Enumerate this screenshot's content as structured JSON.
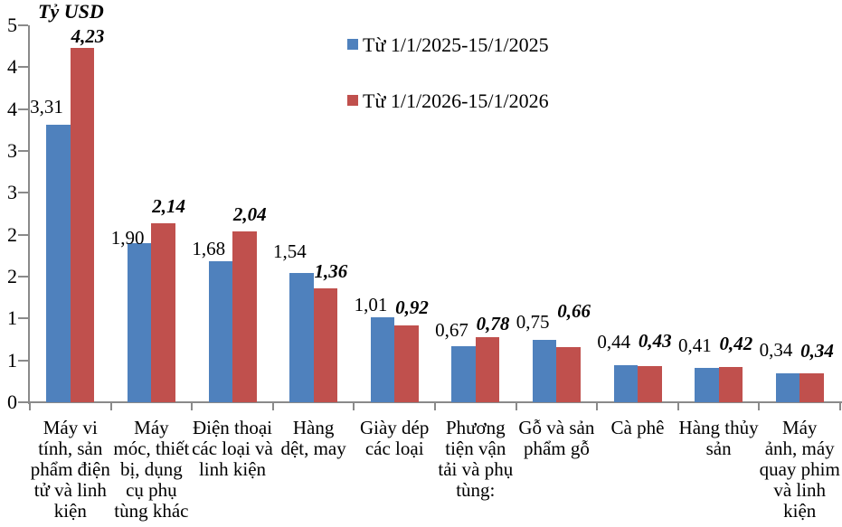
{
  "chart_data": {
    "type": "bar",
    "title": "Tỷ USD",
    "ylabel": "Tỷ USD",
    "xlabel": "",
    "grid": false,
    "legend_position": "top-center-inside",
    "yaxis": {
      "min": 0,
      "max": 4.5,
      "step": 0.5,
      "tick_labels_bottom_to_top": [
        "0",
        "1",
        "1",
        "2",
        "2",
        "3",
        "3",
        "4",
        "4",
        "5"
      ]
    },
    "categories": [
      {
        "label": "Máy vi tính, sản phẩm điện tử và linh kiện",
        "lines": [
          "Máy vi",
          "tính, sản",
          "phẩm điện",
          "tử và linh",
          "kiện"
        ]
      },
      {
        "label": "Máy móc, thiết bị, dụng cụ phụ tùng khác",
        "lines": [
          "Máy",
          "móc, thiết",
          "bị, dụng",
          "cụ phụ",
          "tùng khác"
        ]
      },
      {
        "label": "Điện thoại các loại và linh kiện",
        "lines": [
          "Điện thoại",
          "các loại và",
          "linh kiện"
        ]
      },
      {
        "label": "Hàng dệt, may",
        "lines": [
          "Hàng",
          "dệt, may"
        ]
      },
      {
        "label": "Giày dép các loại",
        "lines": [
          "Giày dép",
          "các loại"
        ]
      },
      {
        "label": "Phương tiện vận tải và phụ tùng:",
        "lines": [
          "Phương",
          "tiện vận",
          "tải và phụ",
          "tùng:"
        ]
      },
      {
        "label": "Gỗ và sản phẩm gỗ",
        "lines": [
          "Gỗ và sản",
          "phẩm gỗ"
        ]
      },
      {
        "label": "Cà phê",
        "lines": [
          "Cà phê"
        ]
      },
      {
        "label": "Hàng thủy sản",
        "lines": [
          "Hàng thủy",
          "sản"
        ]
      },
      {
        "label": "Máy ảnh, máy quay phim và linh kiện",
        "lines": [
          "Máy",
          "ảnh, máy",
          "quay phim",
          "và linh",
          "kiện"
        ]
      }
    ],
    "series": [
      {
        "name": "Từ 1/1/2025-15/1/2025",
        "color": "#4F81BD",
        "values": [
          3.31,
          1.9,
          1.68,
          1.54,
          1.01,
          0.67,
          0.75,
          0.44,
          0.41,
          0.34
        ],
        "value_labels": [
          "3,31",
          "1,90",
          "1,68",
          "1,54",
          "1,01",
          "0,67",
          "0,75",
          "0,44",
          "0,41",
          "0,34"
        ]
      },
      {
        "name": "Từ 1/1/2026-15/1/2026",
        "color": "#C0504D",
        "values": [
          4.23,
          2.14,
          2.04,
          1.36,
          0.92,
          0.78,
          0.66,
          0.43,
          0.42,
          0.34
        ],
        "value_labels": [
          "4,23",
          "2,14",
          "2,04",
          "1,36",
          "0,92",
          "0,78",
          "0,66",
          "0,43",
          "0,42",
          "0,34"
        ]
      }
    ]
  },
  "colors": {
    "axis": "#8A8A8A",
    "text": "#000000",
    "background": "#FFFFFF"
  }
}
